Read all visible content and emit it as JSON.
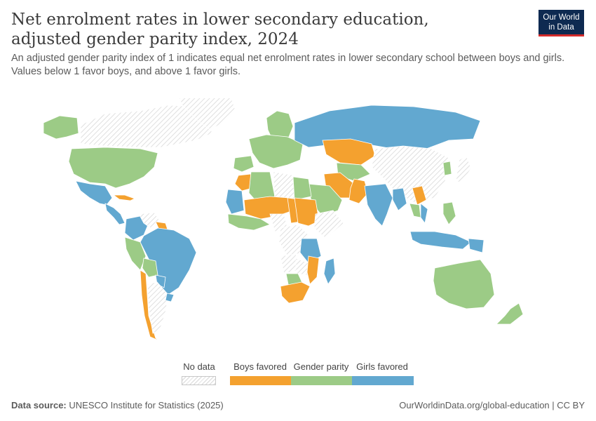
{
  "header": {
    "title": "Net enrolment rates in lower secondary education, adjusted gender parity index, 2024",
    "subtitle": "An adjusted gender parity index of 1 indicates equal net enrolment rates in lower secondary school between boys and girls. Values below 1 favor boys, and above 1 favor girls."
  },
  "logo": {
    "line1": "Our World",
    "line2": "in Data"
  },
  "legend": {
    "no_data": "No data",
    "items": [
      {
        "label": "Boys favored",
        "color": "#f4a12f"
      },
      {
        "label": "Gender parity",
        "color": "#9ccb86"
      },
      {
        "label": "Girls favored",
        "color": "#62a8d0"
      }
    ],
    "no_data_color": "#d8d8d8"
  },
  "colors": {
    "boys": "#f4a12f",
    "parity": "#9ccb86",
    "girls": "#62a8d0",
    "nodata_hatch": "#d8d8d8"
  },
  "regions": [
    {
      "name": "Canada",
      "category": "nodata"
    },
    {
      "name": "Greenland",
      "category": "nodata"
    },
    {
      "name": "Alaska",
      "category": "parity"
    },
    {
      "name": "United States",
      "category": "parity"
    },
    {
      "name": "Mexico",
      "category": "girls"
    },
    {
      "name": "Central America",
      "category": "girls"
    },
    {
      "name": "Cuba",
      "category": "boys"
    },
    {
      "name": "Colombia-Ecuador",
      "category": "girls"
    },
    {
      "name": "Venezuela",
      "category": "nodata"
    },
    {
      "name": "Guyana-Suriname",
      "category": "boys"
    },
    {
      "name": "Brazil",
      "category": "girls"
    },
    {
      "name": "Peru",
      "category": "parity"
    },
    {
      "name": "Bolivia",
      "category": "parity"
    },
    {
      "name": "Paraguay",
      "category": "girls"
    },
    {
      "name": "Chile",
      "category": "boys"
    },
    {
      "name": "Argentina",
      "category": "nodata"
    },
    {
      "name": "Uruguay",
      "category": "girls"
    },
    {
      "name": "Scandinavia",
      "category": "parity"
    },
    {
      "name": "Western Europe",
      "category": "parity"
    },
    {
      "name": "Iberia",
      "category": "parity"
    },
    {
      "name": "Russia",
      "category": "girls"
    },
    {
      "name": "Kazakhstan",
      "category": "boys"
    },
    {
      "name": "Mongolia-China",
      "category": "nodata"
    },
    {
      "name": "Central Asia",
      "category": "parity"
    },
    {
      "name": "Iran",
      "category": "boys"
    },
    {
      "name": "Pakistan",
      "category": "boys"
    },
    {
      "name": "Saudi Arabia",
      "category": "parity"
    },
    {
      "name": "India",
      "category": "girls"
    },
    {
      "name": "Myanmar",
      "category": "girls"
    },
    {
      "name": "Laos",
      "category": "boys"
    },
    {
      "name": "Thailand",
      "category": "parity"
    },
    {
      "name": "Vietnam",
      "category": "girls"
    },
    {
      "name": "Philippines",
      "category": "parity"
    },
    {
      "name": "Indonesia",
      "category": "girls"
    },
    {
      "name": "Papua New Guinea",
      "category": "girls"
    },
    {
      "name": "Japan",
      "category": "nodata"
    },
    {
      "name": "Korea",
      "category": "parity"
    },
    {
      "name": "Australia",
      "category": "parity"
    },
    {
      "name": "New Zealand",
      "category": "parity"
    },
    {
      "name": "Morocco",
      "category": "boys"
    },
    {
      "name": "Algeria",
      "category": "parity"
    },
    {
      "name": "Libya",
      "category": "nodata"
    },
    {
      "name": "Egypt",
      "category": "parity"
    },
    {
      "name": "Mauritania",
      "category": "girls"
    },
    {
      "name": "Mali-Niger",
      "category": "boys"
    },
    {
      "name": "Chad",
      "category": "boys"
    },
    {
      "name": "Sudan",
      "category": "boys"
    },
    {
      "name": "West Africa Coast",
      "category": "parity"
    },
    {
      "name": "Nigeria",
      "category": "nodata"
    },
    {
      "name": "Central Africa",
      "category": "nodata"
    },
    {
      "name": "Ethiopia-Somalia",
      "category": "nodata"
    },
    {
      "name": "Tanzania",
      "category": "girls"
    },
    {
      "name": "Angola",
      "category": "nodata"
    },
    {
      "name": "Zambia",
      "category": "nodata"
    },
    {
      "name": "Mozambique",
      "category": "boys"
    },
    {
      "name": "Botswana",
      "category": "parity"
    },
    {
      "name": "South Africa",
      "category": "boys"
    },
    {
      "name": "Madagascar",
      "category": "girls"
    }
  ],
  "footer": {
    "source_label": "Data source:",
    "source_text": "UNESCO Institute for Statistics (2025)",
    "credit": "OurWorldinData.org/global-education | CC BY"
  }
}
